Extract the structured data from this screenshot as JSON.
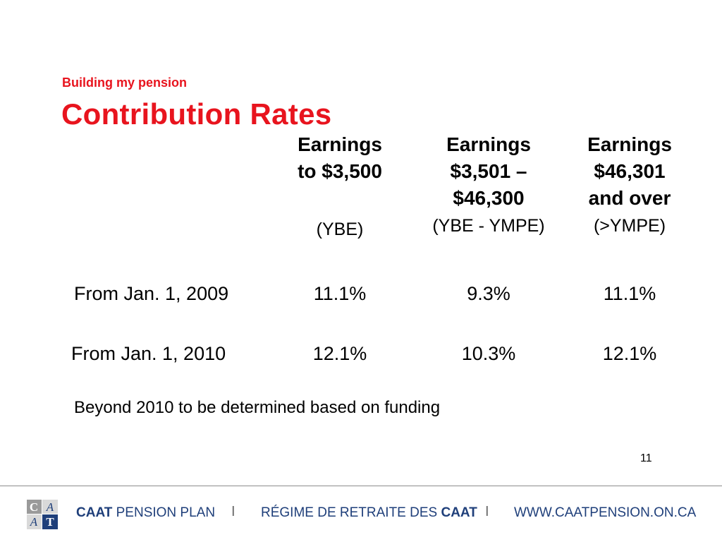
{
  "header": {
    "subtitle": "Building my pension",
    "title": "Contribution Rates"
  },
  "table": {
    "columns": [
      {
        "lines": [
          "Earnings",
          "to $3,500"
        ],
        "sub": "(YBE)"
      },
      {
        "lines": [
          "Earnings",
          "$3,501 –",
          "$46,300"
        ],
        "sub": "(YBE - YMPE)"
      },
      {
        "lines": [
          "Earnings",
          "$46,301",
          "and over"
        ],
        "sub": "(>YMPE)"
      }
    ],
    "rows": [
      {
        "label": "From Jan. 1, 2009",
        "values": [
          "11.1%",
          "9.3%",
          "11.1%"
        ]
      },
      {
        "label": "From Jan. 1, 2010",
        "values": [
          "12.1%",
          "10.3%",
          "12.1%"
        ]
      }
    ]
  },
  "note": "Beyond 2010 to be determined based on funding",
  "page_number": "11",
  "footer": {
    "plan_bold": "CAAT",
    "plan_rest": " PENSION PLAN",
    "separator": "I",
    "regime_rest": "RÉGIME DE RETRAITE DES ",
    "regime_bold": "CAAT",
    "website": "WWW.CAATPENSION.ON.CA",
    "logo_letters": [
      "C",
      "A",
      "A",
      "T"
    ]
  },
  "colors": {
    "accent": "#e8141e",
    "footer_text": "#1f3f7a"
  }
}
